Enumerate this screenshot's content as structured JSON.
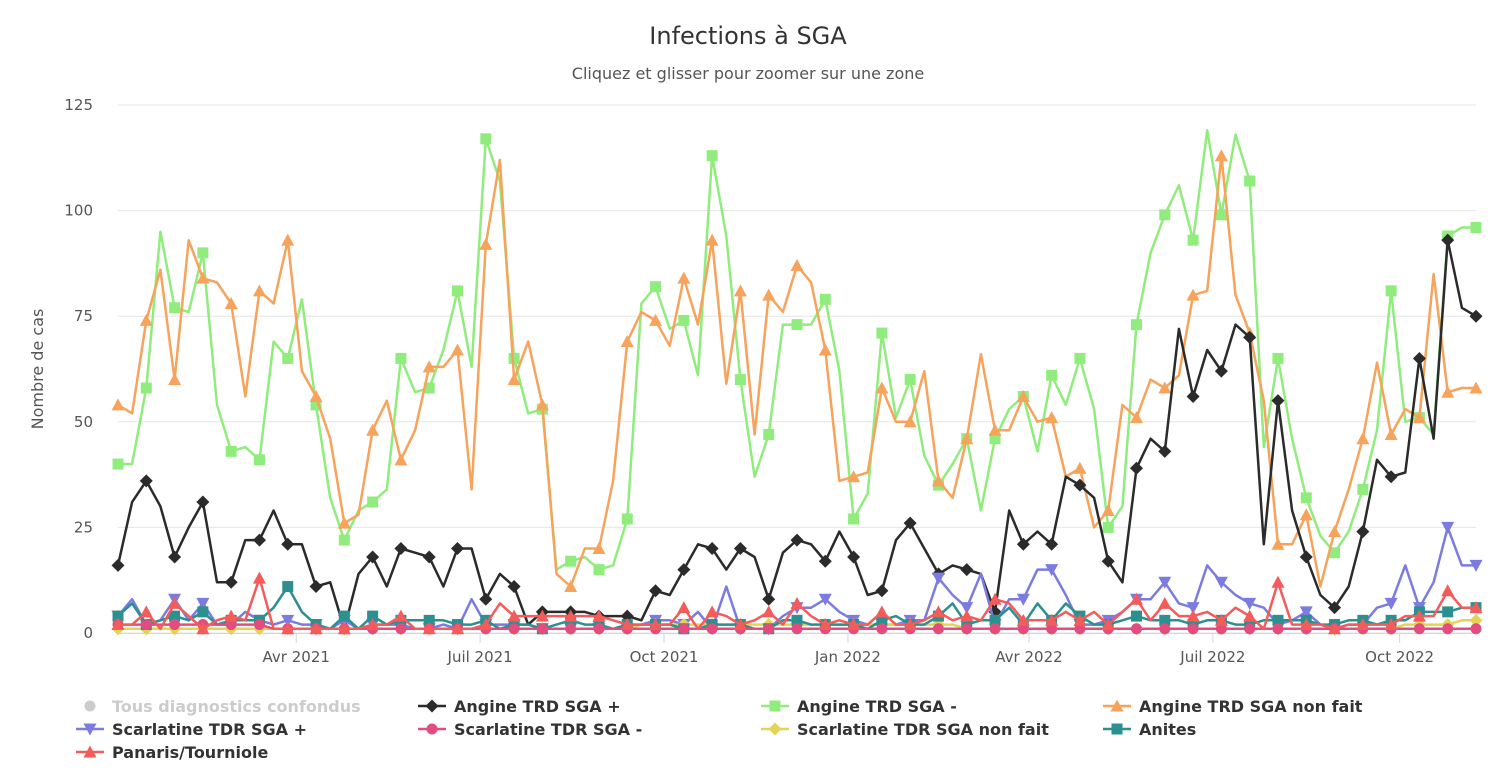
{
  "chart_data": {
    "type": "line",
    "title": "Infections à SGA",
    "subtitle": "Cliquez et glisser pour zoomer sur une zone",
    "ylabel": "Nombre de cas",
    "xlabel": "",
    "ylim": [
      0,
      125
    ],
    "yticks": [
      0,
      25,
      50,
      75,
      100,
      125
    ],
    "x_start": "2021-01-04",
    "x_step_days": 7,
    "x_count": 97,
    "xticks": [
      {
        "label": "Avr 2021",
        "week": 12.6
      },
      {
        "label": "Juil 2021",
        "week": 25.6
      },
      {
        "label": "Oct 2021",
        "week": 38.6
      },
      {
        "label": "Jan 2022",
        "week": 51.6
      },
      {
        "label": "Avr 2022",
        "week": 64.4
      },
      {
        "label": "Juil 2022",
        "week": 77.4
      },
      {
        "label": "Oct 2022",
        "week": 90.6
      }
    ],
    "grid": true,
    "legend_position": "bottom",
    "series": [
      {
        "name": "Tous diagnostics confondus",
        "color": "#cccccc",
        "marker": "circle",
        "visible": false,
        "values": []
      },
      {
        "name": "Angine TRD SGA +",
        "color": "#2b2b2b",
        "marker": "diamond",
        "visible": true,
        "values": [
          16,
          31,
          36,
          30,
          18,
          25,
          31,
          12,
          12,
          22,
          22,
          29,
          21,
          21,
          11,
          12,
          1,
          14,
          18,
          11,
          20,
          19,
          18,
          11,
          20,
          20,
          8,
          14,
          11,
          2,
          5,
          5,
          5,
          5,
          4,
          4,
          4,
          3,
          10,
          9,
          15,
          21,
          20,
          15,
          20,
          18,
          8,
          19,
          22,
          21,
          17,
          24,
          18,
          9,
          10,
          22,
          26,
          20,
          14,
          16,
          15,
          14,
          5,
          29,
          21,
          24,
          21,
          37,
          35,
          32,
          17,
          12,
          39,
          46,
          43,
          72,
          56,
          67,
          62,
          73,
          70,
          21,
          55,
          29,
          18,
          9,
          6,
          11,
          24,
          41,
          37,
          38,
          65,
          46,
          93,
          77,
          75
        ]
      },
      {
        "name": "Angine TRD SGA -",
        "color": "#90ed7d",
        "marker": "square",
        "visible": true,
        "values": [
          40,
          40,
          58,
          95,
          77,
          76,
          90,
          54,
          43,
          44,
          41,
          69,
          65,
          79,
          54,
          32,
          22,
          29,
          31,
          34,
          65,
          57,
          58,
          67,
          81,
          63,
          117,
          107,
          65,
          52,
          53,
          15,
          17,
          18,
          15,
          16,
          27,
          78,
          82,
          72,
          74,
          61,
          113,
          94,
          60,
          37,
          47,
          73,
          73,
          73,
          79,
          62,
          27,
          33,
          71,
          51,
          60,
          42,
          35,
          40,
          46,
          29,
          46,
          53,
          56,
          43,
          61,
          54,
          65,
          53,
          25,
          30,
          73,
          90,
          99,
          106,
          93,
          119,
          99,
          118,
          107,
          44,
          65,
          46,
          32,
          23,
          19,
          24,
          34,
          48,
          81,
          50,
          51,
          47,
          94,
          96,
          96
        ]
      },
      {
        "name": "Angine TRD SGA non fait",
        "color": "#f7a35c",
        "marker": "triangle",
        "visible": true,
        "values": [
          54,
          52,
          74,
          86,
          60,
          93,
          84,
          83,
          78,
          56,
          81,
          78,
          93,
          62,
          56,
          46,
          26,
          28,
          48,
          55,
          41,
          48,
          63,
          63,
          67,
          34,
          92,
          112,
          60,
          69,
          54,
          14,
          11,
          20,
          20,
          36,
          69,
          76,
          74,
          68,
          84,
          73,
          93,
          59,
          81,
          47,
          80,
          76,
          87,
          83,
          67,
          36,
          37,
          38,
          58,
          50,
          50,
          62,
          36,
          32,
          46,
          66,
          48,
          48,
          56,
          50,
          51,
          37,
          39,
          25,
          29,
          54,
          51,
          60,
          58,
          61,
          80,
          81,
          113,
          80,
          71,
          55,
          21,
          21,
          28,
          11,
          24,
          34,
          46,
          64,
          47,
          53,
          51,
          85,
          57,
          58,
          58
        ]
      },
      {
        "name": "Scarlatine TDR SGA +",
        "color": "#7b7be0",
        "marker": "triangle-down",
        "visible": true,
        "values": [
          4,
          8,
          2,
          3,
          8,
          3,
          7,
          2,
          2,
          5,
          3,
          2,
          3,
          2,
          2,
          1,
          3,
          1,
          2,
          2,
          2,
          1,
          1,
          2,
          1,
          8,
          2,
          2,
          2,
          2,
          1,
          1,
          1,
          1,
          1,
          1,
          1,
          2,
          3,
          3,
          2,
          5,
          1,
          11,
          1,
          1,
          1,
          4,
          6,
          6,
          8,
          5,
          3,
          2,
          2,
          2,
          3,
          3,
          13,
          9,
          6,
          14,
          2,
          8,
          8,
          15,
          15,
          9,
          2,
          2,
          3,
          5,
          8,
          8,
          12,
          7,
          6,
          16,
          12,
          9,
          7,
          6,
          2,
          3,
          5,
          2,
          1,
          2,
          2,
          6,
          7,
          16,
          6,
          12,
          25,
          16,
          16
        ]
      },
      {
        "name": "Scarlatine TDR SGA -",
        "color": "#e34d7d",
        "marker": "circle",
        "visible": true,
        "values": [
          2,
          2,
          2,
          2,
          2,
          2,
          2,
          2,
          2,
          2,
          2,
          1,
          1,
          1,
          1,
          1,
          1,
          1,
          1,
          1,
          1,
          1,
          1,
          1,
          1,
          1,
          1,
          1,
          1,
          1,
          1,
          1,
          1,
          1,
          1,
          1,
          1,
          1,
          1,
          1,
          1,
          1,
          1,
          1,
          1,
          1,
          1,
          1,
          1,
          1,
          1,
          1,
          1,
          1,
          1,
          1,
          1,
          1,
          1,
          1,
          1,
          1,
          1,
          1,
          1,
          1,
          1,
          1,
          1,
          1,
          1,
          1,
          1,
          1,
          1,
          1,
          1,
          1,
          1,
          1,
          1,
          1,
          1,
          1,
          1,
          1,
          1,
          1,
          1,
          1,
          1,
          1,
          1,
          1,
          1,
          1,
          1
        ]
      },
      {
        "name": "Scarlatine TDR SGA non fait",
        "color": "#e4d354",
        "marker": "diamond",
        "visible": true,
        "values": [
          1,
          1,
          1,
          1,
          1,
          1,
          1,
          1,
          1,
          1,
          1,
          1,
          1,
          1,
          1,
          1,
          1,
          1,
          1,
          1,
          1,
          1,
          1,
          1,
          1,
          1,
          1,
          1,
          1,
          1,
          1,
          1,
          1,
          1,
          1,
          1,
          1,
          2,
          2,
          2,
          2,
          2,
          2,
          2,
          2,
          2,
          2,
          2,
          2,
          2,
          2,
          2,
          2,
          2,
          2,
          2,
          2,
          2,
          2,
          2,
          1,
          1,
          1,
          1,
          1,
          1,
          1,
          1,
          1,
          1,
          1,
          1,
          1,
          1,
          1,
          1,
          1,
          1,
          1,
          1,
          1,
          1,
          1,
          1,
          1,
          1,
          1,
          1,
          1,
          1,
          1,
          2,
          2,
          2,
          2,
          3,
          3
        ]
      },
      {
        "name": "Anites",
        "color": "#2b908f",
        "marker": "square",
        "visible": true,
        "values": [
          4,
          7,
          2,
          3,
          4,
          3,
          5,
          2,
          3,
          3,
          3,
          6,
          11,
          5,
          2,
          1,
          4,
          1,
          4,
          2,
          3,
          3,
          3,
          3,
          2,
          2,
          3,
          1,
          2,
          2,
          1,
          2,
          3,
          2,
          2,
          1,
          2,
          2,
          2,
          2,
          1,
          1,
          2,
          2,
          2,
          1,
          1,
          3,
          3,
          2,
          2,
          2,
          2,
          1,
          3,
          4,
          2,
          2,
          4,
          7,
          2,
          3,
          3,
          6,
          2,
          7,
          3,
          7,
          4,
          2,
          2,
          3,
          4,
          3,
          3,
          3,
          2,
          3,
          3,
          2,
          2,
          3,
          3,
          3,
          3,
          2,
          2,
          3,
          3,
          2,
          3,
          3,
          5,
          5,
          5,
          6,
          6
        ]
      },
      {
        "name": "Panaris/Tourniole",
        "color": "#f45b5b",
        "marker": "triangle",
        "visible": true,
        "values": [
          2,
          2,
          5,
          1,
          7,
          4,
          1,
          3,
          4,
          3,
          13,
          1,
          1,
          1,
          1,
          1,
          1,
          1,
          2,
          2,
          4,
          1,
          1,
          1,
          1,
          1,
          2,
          7,
          4,
          4,
          4,
          4,
          4,
          4,
          4,
          3,
          2,
          2,
          2,
          2,
          6,
          1,
          5,
          4,
          2,
          3,
          5,
          2,
          7,
          4,
          2,
          3,
          2,
          2,
          5,
          2,
          2,
          3,
          5,
          3,
          4,
          3,
          8,
          7,
          3,
          3,
          3,
          5,
          3,
          5,
          2,
          5,
          8,
          3,
          7,
          4,
          4,
          5,
          3,
          6,
          4,
          1,
          12,
          2,
          2,
          2,
          1,
          2,
          2,
          2,
          2,
          4,
          4,
          4,
          10,
          6,
          6
        ]
      }
    ]
  }
}
